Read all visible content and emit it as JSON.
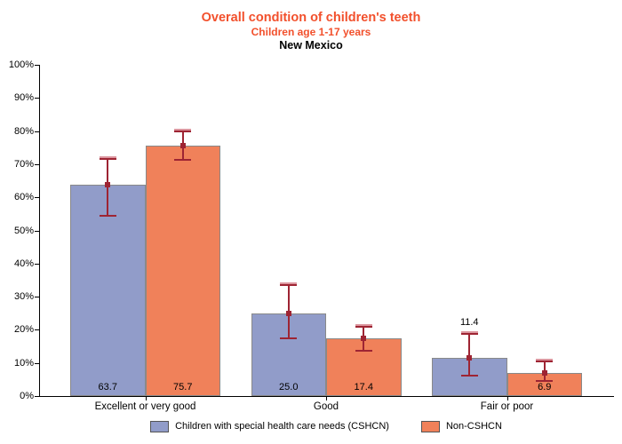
{
  "chart_data": {
    "type": "bar",
    "title": "Overall condition of children's teeth",
    "subtitle": "Children age 1-17 years",
    "subtitle2": "New Mexico",
    "title_color": "#F2502C",
    "categories": [
      "Excellent or very good",
      "Good",
      "Fair or poor"
    ],
    "series": [
      {
        "name": "Children with special health care needs (CSHCN)",
        "color": "#919CC9",
        "values": [
          63.7,
          25.0,
          11.4
        ],
        "value_labels": [
          "63.7",
          "25.0",
          "11.4"
        ],
        "ci_low": [
          54.4,
          17.4,
          6.1
        ],
        "ci_high": [
          71.6,
          33.5,
          18.9
        ],
        "label_placement": [
          "inside-bottom",
          "inside-bottom",
          "above-ci"
        ]
      },
      {
        "name": "Non-CSHCN",
        "color": "#F0815A",
        "values": [
          75.7,
          17.4,
          6.9
        ],
        "value_labels": [
          "75.7",
          "17.4",
          "6.9"
        ],
        "ci_low": [
          71.3,
          13.7,
          4.6
        ],
        "ci_high": [
          79.9,
          20.9,
          10.4
        ],
        "label_placement": [
          "inside-bottom",
          "inside-bottom",
          "inside-bottom"
        ]
      }
    ],
    "xlabel": "",
    "ylabel": "",
    "ylim": [
      0,
      100
    ],
    "ytick_step": 10,
    "ytick_suffix": "%",
    "grid": false,
    "error_bars": true,
    "error_bar_color": "#9E2433",
    "error_bar_cap_highlight": "#DC97A0",
    "bar_border_color": "#898989",
    "legend_position": "bottom"
  }
}
